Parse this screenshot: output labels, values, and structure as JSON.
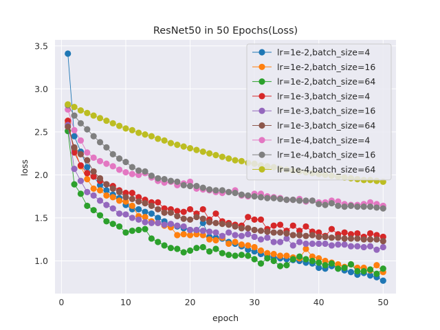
{
  "chart_data": {
    "type": "line",
    "title": "ResNet50 in 50 Epochs(Loss)",
    "xlabel": "epoch",
    "ylabel": "loss",
    "xlim": [
      -1,
      52
    ],
    "ylim": [
      0.62,
      3.57
    ],
    "x_ticks": [
      0,
      10,
      20,
      30,
      40,
      50
    ],
    "y_ticks": [
      1.0,
      1.5,
      2.0,
      2.5,
      3.0,
      3.5
    ],
    "grid": true,
    "background": "#eaeaf2",
    "legend": "top-right",
    "x": [
      1,
      2,
      3,
      4,
      5,
      6,
      7,
      8,
      9,
      10,
      11,
      12,
      13,
      14,
      15,
      16,
      17,
      18,
      19,
      20,
      21,
      22,
      23,
      24,
      25,
      26,
      27,
      28,
      29,
      30,
      31,
      32,
      33,
      34,
      35,
      36,
      37,
      38,
      39,
      40,
      41,
      42,
      43,
      44,
      45,
      46,
      47,
      48,
      49,
      50
    ],
    "series": [
      {
        "name": "lr=1e-2,batch_size=4",
        "color": "#1f77b4",
        "values": [
          3.41,
          2.45,
          2.27,
          2.09,
          1.98,
          1.88,
          1.82,
          1.77,
          1.73,
          1.65,
          1.6,
          1.6,
          1.57,
          1.55,
          1.5,
          1.46,
          1.42,
          1.4,
          1.38,
          1.36,
          1.35,
          1.44,
          1.28,
          1.27,
          1.26,
          1.22,
          1.2,
          1.17,
          1.13,
          1.11,
          1.08,
          1.06,
          1.04,
          1.03,
          1.02,
          1.01,
          1.0,
          0.98,
          0.97,
          0.92,
          0.91,
          0.94,
          0.91,
          0.89,
          0.87,
          0.84,
          0.86,
          0.83,
          0.81,
          0.77
        ]
      },
      {
        "name": "lr=1e-2,batch_size=16",
        "color": "#ff7f0e",
        "values": [
          2.6,
          2.3,
          2.1,
          1.95,
          1.84,
          1.82,
          1.76,
          1.74,
          1.7,
          1.69,
          1.64,
          1.52,
          1.51,
          1.46,
          1.44,
          1.41,
          1.39,
          1.3,
          1.31,
          1.3,
          1.31,
          1.3,
          1.25,
          1.24,
          1.27,
          1.2,
          1.22,
          1.19,
          1.18,
          1.16,
          1.12,
          1.09,
          1.08,
          1.06,
          1.06,
          1.04,
          1.03,
          1.14,
          1.05,
          1.03,
          1.0,
          0.98,
          0.96,
          0.93,
          0.96,
          0.92,
          0.92,
          0.89,
          0.95,
          0.87
        ]
      },
      {
        "name": "lr=1e-2,batch_size=64",
        "color": "#2ca02c",
        "values": [
          2.51,
          1.89,
          1.78,
          1.64,
          1.59,
          1.53,
          1.46,
          1.43,
          1.4,
          1.33,
          1.35,
          1.36,
          1.37,
          1.26,
          1.22,
          1.18,
          1.15,
          1.14,
          1.1,
          1.12,
          1.15,
          1.16,
          1.11,
          1.14,
          1.09,
          1.07,
          1.06,
          1.07,
          1.06,
          1.02,
          0.97,
          1.03,
          1.0,
          0.94,
          0.95,
          1.02,
          1.05,
          1.02,
          1.0,
          0.98,
          0.95,
          0.97,
          0.91,
          0.92,
          0.96,
          0.88,
          0.88,
          0.9,
          0.85,
          0.91
        ]
      },
      {
        "name": "lr=1e-3,batch_size=4",
        "color": "#d62728",
        "values": [
          2.63,
          2.26,
          2.11,
          2.02,
          1.98,
          1.93,
          1.89,
          1.87,
          1.82,
          1.79,
          1.79,
          1.74,
          1.71,
          1.68,
          1.68,
          1.61,
          1.6,
          1.58,
          1.57,
          1.6,
          1.55,
          1.6,
          1.48,
          1.55,
          1.46,
          1.44,
          1.42,
          1.41,
          1.51,
          1.48,
          1.48,
          1.37,
          1.41,
          1.42,
          1.35,
          1.41,
          1.35,
          1.4,
          1.34,
          1.33,
          1.29,
          1.37,
          1.31,
          1.33,
          1.31,
          1.32,
          1.28,
          1.32,
          1.3,
          1.28
        ]
      },
      {
        "name": "lr=1e-3,batch_size=16",
        "color": "#9467bd",
        "values": [
          2.58,
          2.07,
          1.93,
          1.8,
          1.76,
          1.7,
          1.65,
          1.61,
          1.55,
          1.54,
          1.5,
          1.48,
          1.45,
          1.44,
          1.44,
          1.42,
          1.43,
          1.41,
          1.4,
          1.36,
          1.36,
          1.35,
          1.34,
          1.33,
          1.29,
          1.33,
          1.3,
          1.29,
          1.31,
          1.28,
          1.25,
          1.27,
          1.22,
          1.22,
          1.26,
          1.18,
          1.22,
          1.2,
          1.2,
          1.2,
          1.2,
          1.18,
          1.19,
          1.19,
          1.17,
          1.17,
          1.16,
          1.17,
          1.13,
          1.16
        ]
      },
      {
        "name": "lr=1e-3,batch_size=64",
        "color": "#8c564b",
        "values": [
          2.56,
          2.32,
          2.24,
          2.17,
          2.04,
          1.96,
          1.89,
          1.84,
          1.8,
          1.74,
          1.72,
          1.69,
          1.67,
          1.64,
          1.6,
          1.56,
          1.56,
          1.52,
          1.49,
          1.48,
          1.51,
          1.49,
          1.45,
          1.44,
          1.43,
          1.42,
          1.4,
          1.38,
          1.38,
          1.36,
          1.35,
          1.34,
          1.33,
          1.33,
          1.32,
          1.3,
          1.3,
          1.29,
          1.3,
          1.28,
          1.28,
          1.27,
          1.27,
          1.26,
          1.26,
          1.26,
          1.25,
          1.25,
          1.25,
          1.23
        ]
      },
      {
        "name": "lr=1e-4,batch_size=4",
        "color": "#e377c2",
        "values": [
          2.76,
          2.52,
          2.4,
          2.26,
          2.2,
          2.16,
          2.13,
          2.1,
          2.06,
          2.03,
          2.01,
          2.0,
          2.02,
          1.97,
          1.93,
          1.91,
          1.92,
          1.88,
          1.9,
          1.92,
          1.84,
          1.83,
          1.82,
          1.8,
          1.79,
          1.8,
          1.82,
          1.76,
          1.75,
          1.78,
          1.78,
          1.75,
          1.74,
          1.73,
          1.71,
          1.71,
          1.72,
          1.69,
          1.7,
          1.68,
          1.68,
          1.7,
          1.69,
          1.66,
          1.65,
          1.65,
          1.66,
          1.68,
          1.66,
          1.64
        ]
      },
      {
        "name": "lr=1e-4,batch_size=16",
        "color": "#7f7f7f",
        "values": [
          2.81,
          2.69,
          2.6,
          2.53,
          2.45,
          2.38,
          2.32,
          2.24,
          2.19,
          2.15,
          2.09,
          2.05,
          2.04,
          1.99,
          1.96,
          1.95,
          1.93,
          1.92,
          1.88,
          1.87,
          1.87,
          1.85,
          1.83,
          1.82,
          1.82,
          1.8,
          1.79,
          1.77,
          1.76,
          1.75,
          1.74,
          1.73,
          1.73,
          1.72,
          1.71,
          1.71,
          1.7,
          1.7,
          1.7,
          1.66,
          1.65,
          1.67,
          1.64,
          1.63,
          1.64,
          1.63,
          1.63,
          1.63,
          1.62,
          1.61
        ]
      },
      {
        "name": "lr=1e-4,batch_size=64",
        "color": "#bcbd22",
        "values": [
          2.82,
          2.79,
          2.75,
          2.72,
          2.69,
          2.66,
          2.63,
          2.6,
          2.57,
          2.54,
          2.52,
          2.49,
          2.47,
          2.45,
          2.42,
          2.4,
          2.37,
          2.35,
          2.33,
          2.31,
          2.29,
          2.27,
          2.25,
          2.23,
          2.21,
          2.19,
          2.17,
          2.16,
          2.14,
          2.13,
          2.11,
          2.1,
          2.09,
          2.07,
          2.06,
          2.05,
          2.04,
          2.03,
          2.02,
          2.01,
          2.0,
          1.99,
          1.98,
          1.97,
          1.96,
          1.95,
          1.94,
          1.94,
          1.93,
          1.92
        ]
      }
    ]
  }
}
